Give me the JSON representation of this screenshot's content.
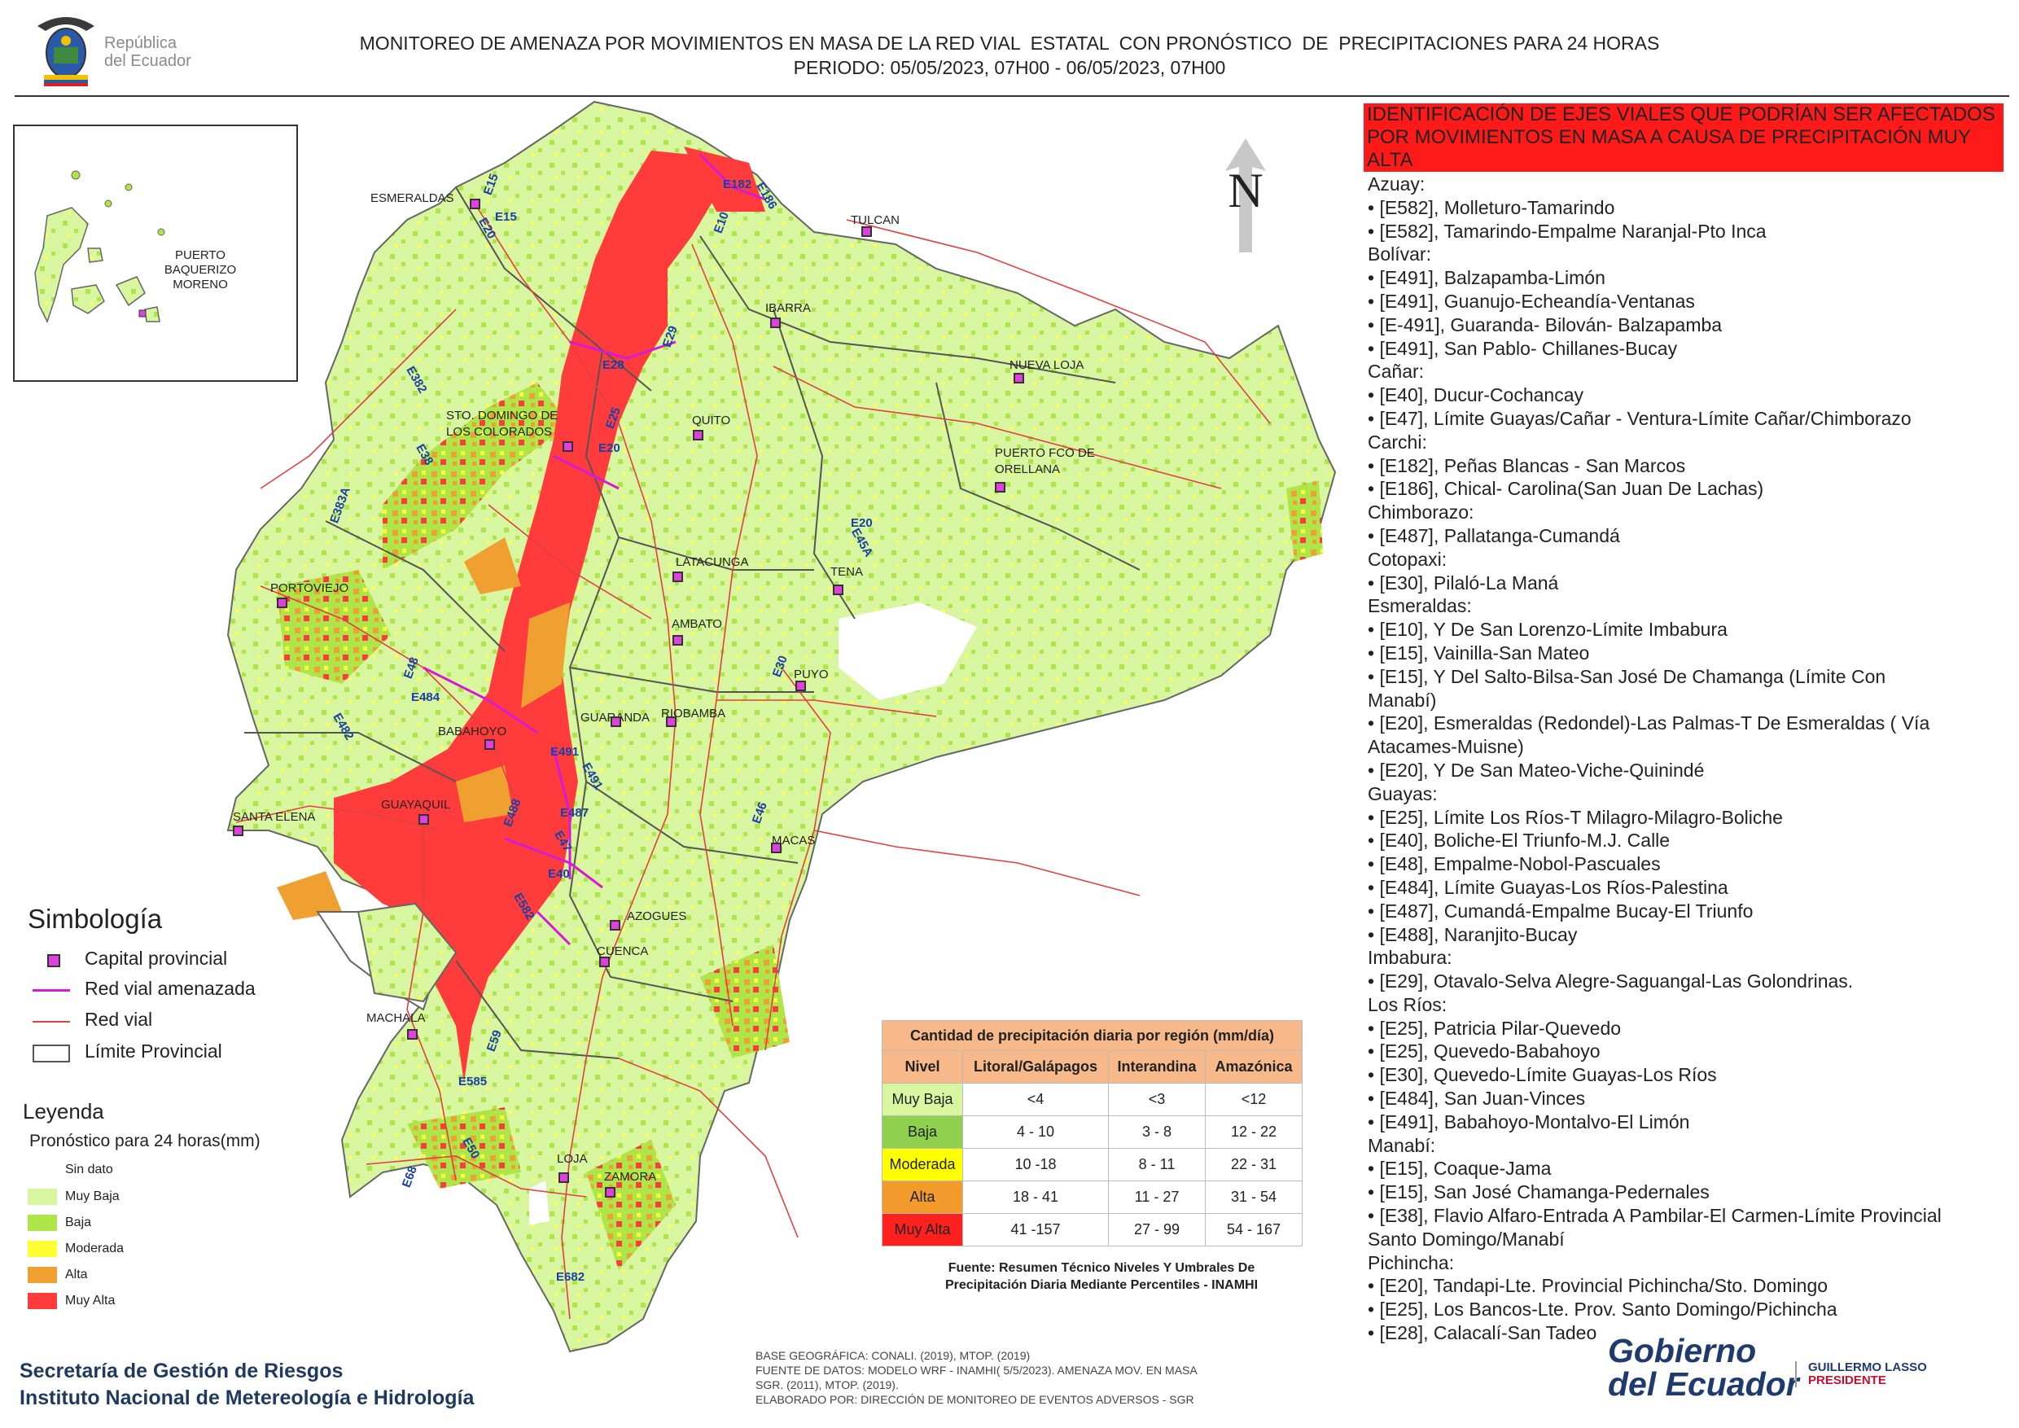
{
  "header": {
    "logo_text": [
      "República",
      "del Ecuador"
    ],
    "title_line1": "MONITOREO DE AMENAZA POR MOVIMIENTOS EN MASA DE LA RED VIAL  ESTATAL  CON PRONÓSTICO  DE  PRECIPITACIONES PARA 24 HORAS",
    "title_line2": "PERIODO: 05/05/2023, 07H00 - 06/05/2023, 07H00"
  },
  "map": {
    "north_label": "N",
    "inset_labels": [
      "PUERTO",
      "BAQUERIZO",
      "MORENO"
    ],
    "cities": [
      "ESMERALDAS",
      "TULCAN",
      "IBARRA",
      "NUEVA LOJA",
      "STO. DOMINGO DE",
      "LOS COLORADOS",
      "QUITO",
      "PUERTO FCO DE",
      "ORELLANA",
      "PORTOVIEJO",
      "LATACUNGA",
      "TENA",
      "AMBATO",
      "PUYO",
      "GUARANDA",
      "RIOBAMBA",
      "BABAHOYO",
      "SANTA ELENA",
      "GUAYAQUIL",
      "MACAS",
      "AZOGUES",
      "CUENCA",
      "MACHALA",
      "LOJA",
      "ZAMORA"
    ],
    "roads": [
      "E15",
      "E15",
      "E20",
      "E10",
      "E182",
      "E186",
      "E29",
      "E28",
      "E382",
      "E25",
      "E20",
      "E38",
      "E383A",
      "E20",
      "E45A",
      "E48",
      "E484",
      "E482",
      "E30",
      "E491",
      "E491",
      "E488",
      "E487",
      "E47",
      "E46",
      "E40",
      "E582",
      "E59",
      "E585",
      "E50",
      "E68",
      "E682"
    ],
    "colors": {
      "muy_baja": "#d8f5a0",
      "baja": "#aee64a",
      "moderada": "#ffff33",
      "alta": "#f0a030",
      "muy_alta": "#ff3b3b"
    }
  },
  "hazard": {
    "heading": "IDENTIFICACIÓN DE EJES VIALES QUE PODRÍAN SER AFECTADOS POR MOVIMIENTOS EN MASA A CAUSA DE PRECIPITACIÓN MUY ALTA",
    "lines": [
      "Azuay:",
      "• [E582], Molleturo-Tamarindo",
      "• [E582], Tamarindo-Empalme Naranjal-Pto Inca",
      "Bolívar:",
      "• [E491], Balzapamba-Limón",
      "• [E491], Guanujo-Echeandía-Ventanas",
      "• [E-491], Guaranda- Bilován- Balzapamba",
      "• [E491], San Pablo- Chillanes-Bucay",
      "Cañar:",
      "• [E40], Ducur-Cochancay",
      "• [E47], Límite Guayas/Cañar - Ventura-Límite Cañar/Chimborazo",
      "Carchi:",
      "• [E182], Peñas Blancas - San Marcos",
      "• [E186], Chical- Carolina(San Juan De Lachas)",
      "Chimborazo:",
      "• [E487], Pallatanga-Cumandá",
      "Cotopaxi:",
      "• [E30], Pilaló-La Maná",
      "Esmeraldas:",
      "• [E10], Y De San Lorenzo-Límite Imbabura",
      "• [E15], Vainilla-San Mateo",
      "• [E15], Y Del Salto-Bilsa-San José De Chamanga (Límite Con",
      "Manabí)",
      "• [E20], Esmeraldas (Redondel)-Las Palmas-T De Esmeraldas ( Vía",
      "Atacames-Muisne)",
      "• [E20], Y De San Mateo-Viche-Quinindé",
      "Guayas:",
      "• [E25], Límite Los Ríos-T Milagro-Milagro-Boliche",
      "• [E40], Boliche-El Triunfo-M.J. Calle",
      "• [E48], Empalme-Nobol-Pascuales",
      "• [E484], Límite Guayas-Los Ríos-Palestina",
      "• [E487], Cumandá-Empalme Bucay-El Triunfo",
      "• [E488], Naranjito-Bucay",
      "Imbabura:",
      "• [E29], Otavalo-Selva Alegre-Saguangal-Las Golondrinas.",
      "Los Ríos:",
      "• [E25], Patricia Pilar-Quevedo",
      "• [E25], Quevedo-Babahoyo",
      "• [E30], Quevedo-Límite Guayas-Los Ríos",
      "• [E484], San Juan-Vinces",
      "• [E491], Babahoyo-Montalvo-El Limón",
      "Manabí:",
      "• [E15], Coaque-Jama",
      "• [E15], San José Chamanga-Pedernales",
      "• [E38], Flavio Alfaro-Entrada A Pambilar-El Carmen-Límite Provincial",
      "Santo Domingo/Manabí",
      "Pichincha:",
      "• [E20], Tandapi-Lte. Provincial Pichincha/Sto. Domingo",
      "• [E25], Los Bancos-Lte. Prov. Santo Domingo/Pichincha",
      "• [E28], Calacalí-San Tadeo"
    ]
  },
  "simbologia": {
    "title": "Simbología",
    "items": [
      "Capital provincial",
      "Red vial amenazada",
      "Red vial",
      "Límite Provincial"
    ]
  },
  "leyenda": {
    "title": "Leyenda",
    "subtitle": "Pronóstico para 24 horas(mm)",
    "items": [
      "Sin dato",
      "Muy Baja",
      "Baja",
      "Moderada",
      "Alta",
      "Muy Alta"
    ]
  },
  "precip_table": {
    "title": "Cantidad de precipitación diaria por región (mm/día)",
    "headers": [
      "Nivel",
      "Litoral/Galápagos",
      "Interandina",
      "Amazónica"
    ],
    "rows": [
      {
        "nivel": "Muy Baja",
        "color": "#d8f5a0",
        "v": [
          "<4",
          "<3",
          "<12"
        ]
      },
      {
        "nivel": "Baja",
        "color": "#8fd14f",
        "v": [
          "4 - 10",
          "3 - 8",
          "12 - 22"
        ]
      },
      {
        "nivel": "Moderada",
        "color": "#ffff00",
        "v": [
          "10 -18",
          "8 - 11",
          "22 - 31"
        ]
      },
      {
        "nivel": "Alta",
        "color": "#f39a2c",
        "v": [
          "18 - 41",
          "11 - 27",
          "31 - 54"
        ]
      },
      {
        "nivel": "Muy Alta",
        "color": "#ff2020",
        "v": [
          "41 -157",
          "27 - 99",
          "54 - 167"
        ]
      }
    ],
    "source_line1": "Fuente: Resumen Técnico Niveles Y Umbrales De",
    "source_line2": "Precipitación Diaria Mediante Percentiles - INAMHI"
  },
  "footer": {
    "org1": "Secretaría de Gestión de Riesgos",
    "org2": "Instituto Nacional de Metereología e Hidrología",
    "credits": [
      "BASE GEOGRÁFICA: CONALI. (2019), MTOP. (2019)",
      "FUENTE DE DATOS: MODELO WRF - INAMHI( 5/5/2023).  AMENAZA MOV. EN MASA",
      "SGR. (2011), MTOP. (2019).",
      "ELABORADO POR: DIRECCIÓN DE MONITOREO DE EVENTOS ADVERSOS - SGR"
    ],
    "gob1": "Gobierno",
    "gob2": "del Ecuador",
    "pres1": "GUILLERMO LASSO",
    "pres2": "PRESIDENTE"
  }
}
